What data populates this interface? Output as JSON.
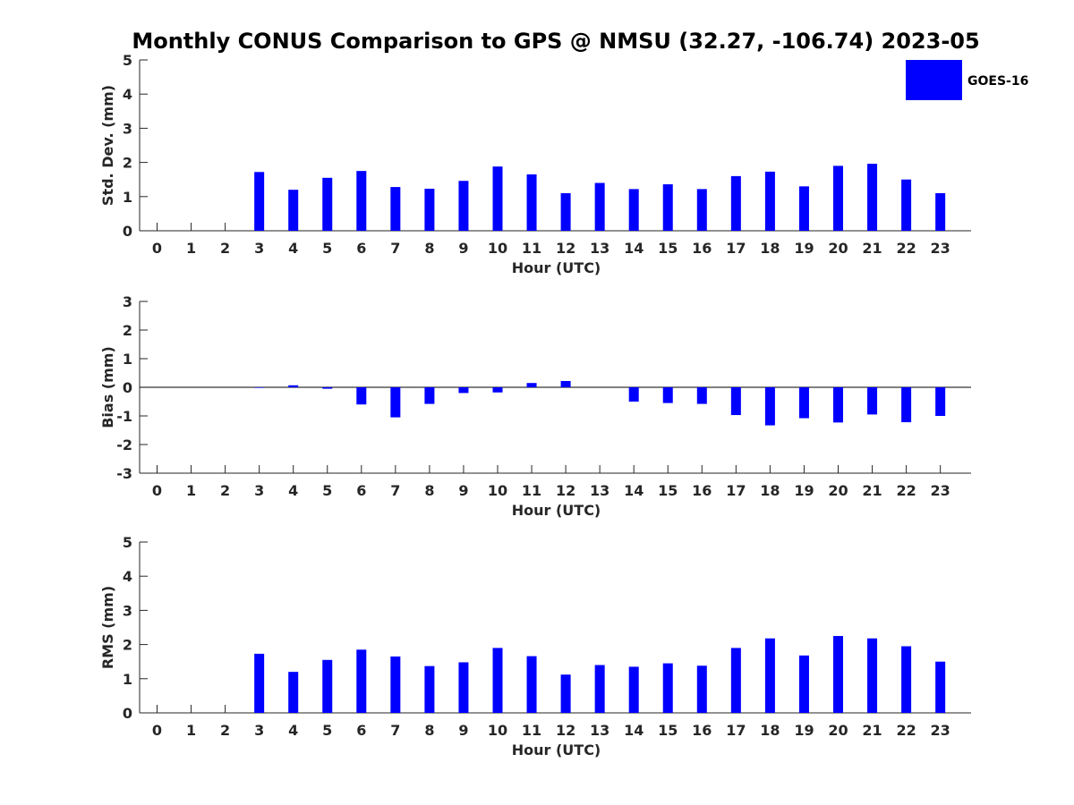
{
  "chart_data": {
    "type": "bar",
    "title": "Monthly CONUS Comparison to GPS @ NMSU (32.27, -106.74) 2023-05",
    "legend": {
      "label": "GOES-16",
      "color": "#0000ff",
      "placement": "top-right"
    },
    "x": [
      0,
      1,
      2,
      3,
      4,
      5,
      6,
      7,
      8,
      9,
      10,
      11,
      12,
      13,
      14,
      15,
      16,
      17,
      18,
      19,
      20,
      21,
      22,
      23
    ],
    "panels": [
      {
        "name": "std-dev",
        "ylabel": "Std. Dev. (mm)",
        "xlabel": "Hour (UTC)",
        "ylim": [
          0,
          5
        ],
        "yticks": [
          0,
          1,
          2,
          3,
          4,
          5
        ],
        "series": [
          {
            "name": "GOES-16",
            "values": [
              null,
              null,
              null,
              1.72,
              1.2,
              1.55,
              1.75,
              1.28,
              1.23,
              1.46,
              1.88,
              1.65,
              1.1,
              1.4,
              1.22,
              1.36,
              1.22,
              1.6,
              1.73,
              1.3,
              1.9,
              1.96,
              1.5,
              1.1
            ]
          }
        ]
      },
      {
        "name": "bias",
        "ylabel": "Bias (mm)",
        "xlabel": "Hour (UTC)",
        "ylim": [
          -3,
          3
        ],
        "yticks": [
          -3,
          -2,
          -1,
          0,
          1,
          2,
          3
        ],
        "series": [
          {
            "name": "GOES-16",
            "values": [
              null,
              null,
              null,
              -0.02,
              0.07,
              -0.05,
              -0.6,
              -1.05,
              -0.58,
              -0.2,
              -0.18,
              0.15,
              0.22,
              0.0,
              -0.5,
              -0.55,
              -0.58,
              -0.97,
              -1.33,
              -1.08,
              -1.23,
              -0.95,
              -1.22,
              -1.0
            ]
          }
        ]
      },
      {
        "name": "rms",
        "ylabel": "RMS (mm)",
        "xlabel": "Hour (UTC)",
        "ylim": [
          0,
          5
        ],
        "yticks": [
          0,
          1,
          2,
          3,
          4,
          5
        ],
        "series": [
          {
            "name": "GOES-16",
            "values": [
              null,
              null,
              null,
              1.73,
              1.2,
              1.55,
              1.85,
              1.65,
              1.37,
              1.48,
              1.9,
              1.66,
              1.12,
              1.4,
              1.35,
              1.45,
              1.38,
              1.9,
              2.18,
              1.68,
              2.25,
              2.18,
              1.95,
              1.5
            ]
          }
        ]
      }
    ]
  }
}
